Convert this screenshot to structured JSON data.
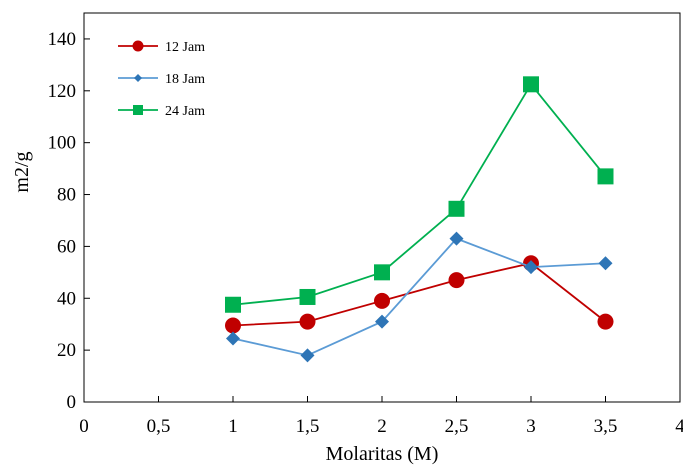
{
  "chart_data": {
    "type": "line",
    "title": "",
    "xlabel": "Molaritas (M)",
    "ylabel": "m2/g",
    "xlim": [
      0,
      4
    ],
    "ylim": [
      0,
      150
    ],
    "x_ticks": [
      "0",
      "0,5",
      "1",
      "1,5",
      "2",
      "2,5",
      "3",
      "3,5",
      "4"
    ],
    "y_ticks": [
      "0",
      "20",
      "40",
      "60",
      "80",
      "100",
      "120",
      "140"
    ],
    "grid": false,
    "legend_position": "top-left",
    "series": [
      {
        "name": "12 Jam",
        "color": "#c00000",
        "marker": "circle",
        "x": [
          1,
          1.5,
          2,
          2.5,
          3,
          3.5
        ],
        "values": [
          29.5,
          31,
          39,
          47,
          53.5,
          31
        ]
      },
      {
        "name": "18 Jam",
        "color": "#5b9bd5",
        "marker_color": "#2e75b6",
        "marker": "diamond",
        "x": [
          1,
          1.5,
          2,
          2.5,
          3,
          3.5
        ],
        "values": [
          24.5,
          18,
          31,
          63,
          52,
          53.5
        ]
      },
      {
        "name": "24 Jam",
        "color": "#00b050",
        "marker": "square",
        "x": [
          1,
          1.5,
          2,
          2.5,
          3,
          3.5
        ],
        "values": [
          37.5,
          40.5,
          50,
          74.5,
          122.5,
          87
        ]
      }
    ]
  }
}
